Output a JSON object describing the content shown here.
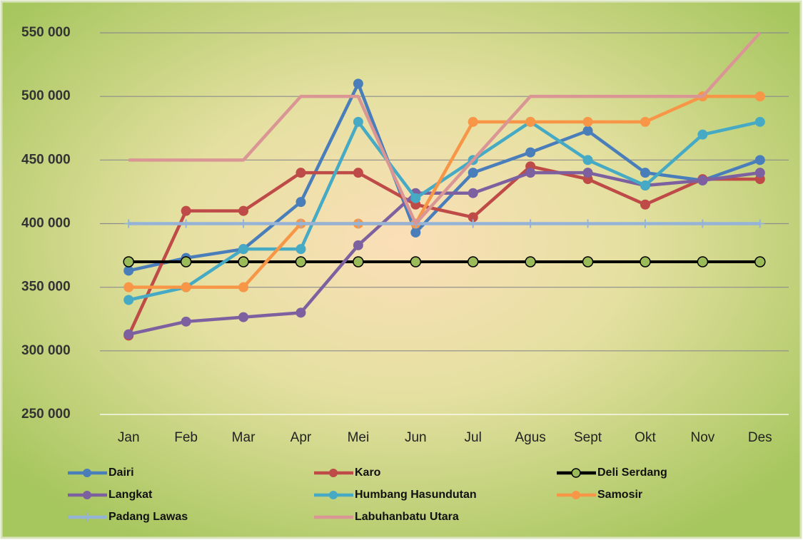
{
  "chart_data": {
    "type": "line",
    "categories": [
      "Jan",
      "Feb",
      "Mar",
      "Apr",
      "Mei",
      "Jun",
      "Jul",
      "Agus",
      "Sept",
      "Okt",
      "Nov",
      "Des"
    ],
    "ylim": [
      250000,
      550000
    ],
    "yticks": [
      {
        "value": 250000,
        "label": "250 000"
      },
      {
        "value": 300000,
        "label": "300 000"
      },
      {
        "value": 350000,
        "label": "350 000"
      },
      {
        "value": 400000,
        "label": "400 000"
      },
      {
        "value": 450000,
        "label": "450 000"
      },
      {
        "value": 500000,
        "label": "500 000"
      },
      {
        "value": 550000,
        "label": "550 000"
      }
    ],
    "grid": true,
    "series": [
      {
        "name": "Dairi",
        "color": "#4a7ebb",
        "marker": "circle",
        "values": [
          363000,
          373000,
          380000,
          417000,
          510000,
          393000,
          440000,
          456000,
          473000,
          440000,
          434000,
          450000
        ]
      },
      {
        "name": "Karo",
        "color": "#be4b48",
        "marker": "circle",
        "values": [
          312000,
          410000,
          410000,
          440000,
          440000,
          415000,
          405000,
          445000,
          435000,
          415000,
          435000,
          435000
        ]
      },
      {
        "name": "Deli Serdang",
        "color": "#000000",
        "marker": "circle",
        "marker_color": "#9bbb59",
        "values": [
          370000,
          370000,
          370000,
          370000,
          370000,
          370000,
          370000,
          370000,
          370000,
          370000,
          370000,
          370000
        ]
      },
      {
        "name": "Langkat",
        "color": "#7d60a0",
        "marker": "circle",
        "values": [
          313000,
          323000,
          326500,
          330000,
          383000,
          424000,
          424000,
          440000,
          440000,
          430000,
          434000,
          440000
        ]
      },
      {
        "name": "Humbang Hasundutan",
        "color": "#46aac5",
        "marker": "circle",
        "values": [
          340000,
          350000,
          380000,
          380000,
          480000,
          420000,
          450000,
          480000,
          450000,
          430000,
          470000,
          480000
        ]
      },
      {
        "name": "Samosir",
        "color": "#f79646",
        "marker": "circle",
        "values": [
          350000,
          350000,
          350000,
          400000,
          400000,
          400000,
          480000,
          480000,
          480000,
          480000,
          500000,
          500000
        ]
      },
      {
        "name": "Padang Lawas",
        "color": "#95b3d7",
        "marker": "plus",
        "values": [
          400000,
          400000,
          400000,
          400000,
          400000,
          400000,
          400000,
          400000,
          400000,
          400000,
          400000,
          400000
        ]
      },
      {
        "name": "Labuhanbatu Utara",
        "color": "#d99694",
        "marker": "none",
        "values": [
          450000,
          450000,
          450000,
          500000,
          500000,
          400000,
          450000,
          500000,
          500000,
          500000,
          500000,
          550000
        ]
      }
    ]
  }
}
